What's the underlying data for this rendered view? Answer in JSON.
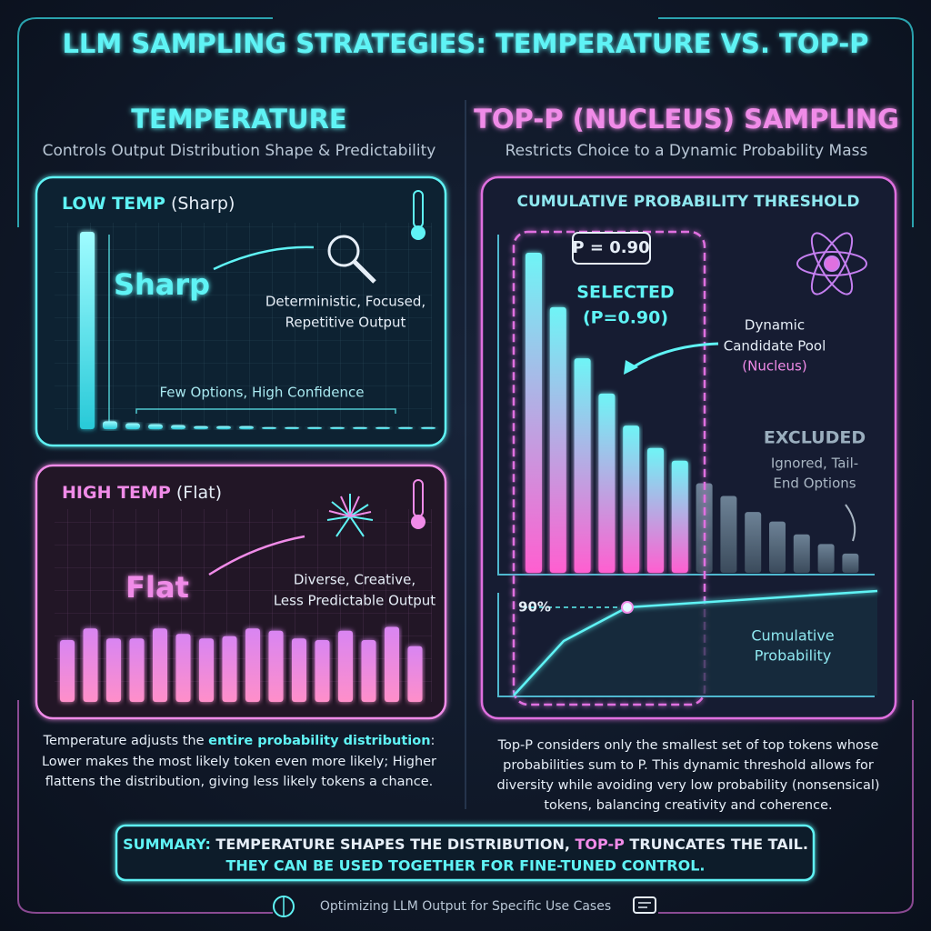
{
  "title": "LLM SAMPLING STRATEGIES: TEMPERATURE VS. TOP-P",
  "temperature": {
    "heading": "TEMPERATURE",
    "subtitle": "Controls Output Distribution Shape & Predictability",
    "low_temp": {
      "label": "LOW TEMP",
      "qualifier": "(Sharp)",
      "word": "Sharp",
      "description": [
        "Deterministic, Focused,",
        "Repetitive Output"
      ],
      "note": "Few Options, High Confidence",
      "values": [
        100,
        4,
        3,
        2.5,
        2,
        1.5,
        1.5,
        1.5,
        1,
        1,
        1,
        1,
        1,
        1,
        1,
        1
      ]
    },
    "high_temp": {
      "label": "HIGH TEMP",
      "qualifier": "(Flat)",
      "word": "Flat",
      "description": [
        "Diverse, Creative,",
        "Less Predictable Output"
      ],
      "values": [
        80,
        95,
        82,
        82,
        95,
        88,
        82,
        85,
        95,
        92,
        82,
        80,
        92,
        80,
        97,
        72
      ]
    },
    "caption": {
      "parts": [
        "Temperature adjusts the ",
        "entire probability distribution",
        ":"
      ],
      "lines": [
        "Lower makes the most likely token even more likely; Higher",
        "flattens the distribution, giving less likely tokens a chance."
      ]
    }
  },
  "top_p": {
    "heading": "TOP-P (NUCLEUS) SAMPLING",
    "subtitle": "Restricts Choice to a Dynamic Probability Mass",
    "panel_title": "CUMULATIVE PROBABILITY THRESHOLD",
    "threshold": "P = 0.90",
    "selected_label": [
      "SELECTED",
      "(P=0.90)"
    ],
    "pool_label": [
      "Dynamic",
      "Candidate Pool"
    ],
    "pool_note": "(Nucleus)",
    "excluded_label": "EXCLUDED",
    "excluded_note": [
      "Ignored, Tail-",
      "End Options"
    ],
    "cumulative_mark": "90%",
    "cumulative_label": [
      "Cumulative",
      "Probability"
    ],
    "selected_values": [
      100,
      83,
      67,
      56,
      46,
      39,
      35
    ],
    "excluded_values": [
      28,
      24,
      19,
      16,
      12,
      9,
      6
    ],
    "caption": [
      "Top-P considers only the smallest set of top tokens whose",
      "probabilities sum to P. This dynamic threshold allows for",
      "diversity while avoiding very low probability (nonsensical)",
      "tokens, balancing creativity and coherence."
    ]
  },
  "summary": {
    "line1": [
      "SUMMARY:",
      " TEMPERATURE SHAPES THE DISTRIBUTION, ",
      "TOP-P",
      " TRUNCATES THE TAIL."
    ],
    "line2": "THEY CAN BE USED TOGETHER FOR FINE-TUNED CONTROL."
  },
  "footer": "Optimizing LLM Output for Specific Use Cases"
}
